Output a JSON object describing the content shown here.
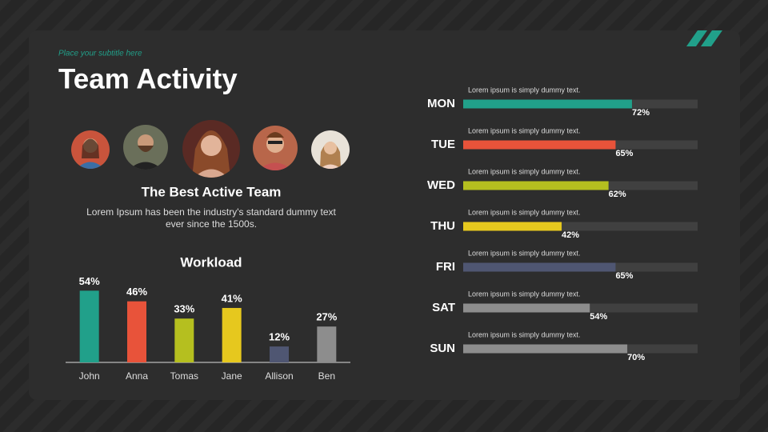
{
  "subtitle": "Place your subtitle here",
  "title": "Team Activity",
  "team": {
    "title": "The Best Active Team",
    "text": [
      "Lorem Ipsum has been the industry's standard dummy text",
      "ever since the 1500s."
    ]
  },
  "chart_data": [
    {
      "type": "bar",
      "title": "Workload",
      "categories": [
        "John",
        "Anna",
        "Tomas",
        "Jane",
        "Allison",
        "Ben"
      ],
      "values": [
        54,
        46,
        33,
        41,
        12,
        27
      ],
      "value_labels": [
        "54%",
        "46%",
        "33%",
        "41%",
        "12%",
        "27%"
      ],
      "colors": [
        "#21a08a",
        "#e8533a",
        "#b5bf1f",
        "#e6c81e",
        "#4f5672",
        "#8d8d8d"
      ]
    },
    {
      "type": "barh",
      "categories": [
        "MON",
        "TUE",
        "WED",
        "THU",
        "FRI",
        "SAT",
        "SUN"
      ],
      "values": [
        72,
        65,
        62,
        42,
        65,
        54,
        70
      ],
      "value_labels": [
        "72%",
        "65%",
        "62%",
        "42%",
        "65%",
        "54%",
        "70%"
      ],
      "descriptions": [
        "Lorem ipsum is simply dummy text.",
        "Lorem ipsum is simply dummy text.",
        "Lorem ipsum is simply dummy text.",
        "Lorem ipsum is simply dummy text.",
        "Lorem ipsum is simply dummy text.",
        "Lorem ipsum is simply dummy text.",
        "Lorem ipsum is simply dummy text."
      ],
      "colors": [
        "#21a08a",
        "#e8533a",
        "#b5bf1f",
        "#e6c81e",
        "#4f5672",
        "#8d8d8d",
        "#8d8d8d"
      ],
      "xlim": [
        0,
        100
      ]
    }
  ]
}
